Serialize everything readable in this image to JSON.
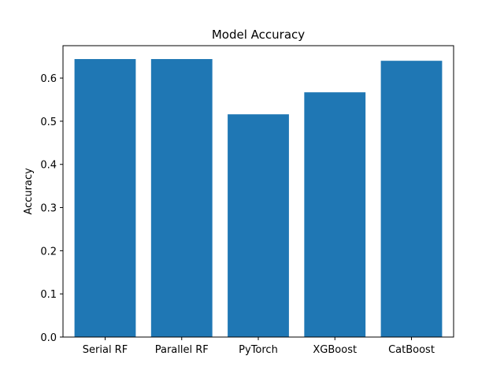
{
  "chart_data": {
    "type": "bar",
    "title": "Model Accuracy",
    "xlabel": "",
    "ylabel": "Accuracy",
    "categories": [
      "Serial RF",
      "Parallel RF",
      "PyTorch",
      "XGBoost",
      "CatBoost"
    ],
    "values": [
      0.644,
      0.644,
      0.516,
      0.567,
      0.64
    ],
    "ylim": [
      0,
      0.675
    ],
    "yticks": [
      0.0,
      0.1,
      0.2,
      0.3,
      0.4,
      0.5,
      0.6
    ],
    "ytick_labels": [
      "0.0",
      "0.1",
      "0.2",
      "0.3",
      "0.4",
      "0.5",
      "0.6"
    ],
    "bar_color": "#1f77b4",
    "grid": false,
    "legend": "none"
  }
}
